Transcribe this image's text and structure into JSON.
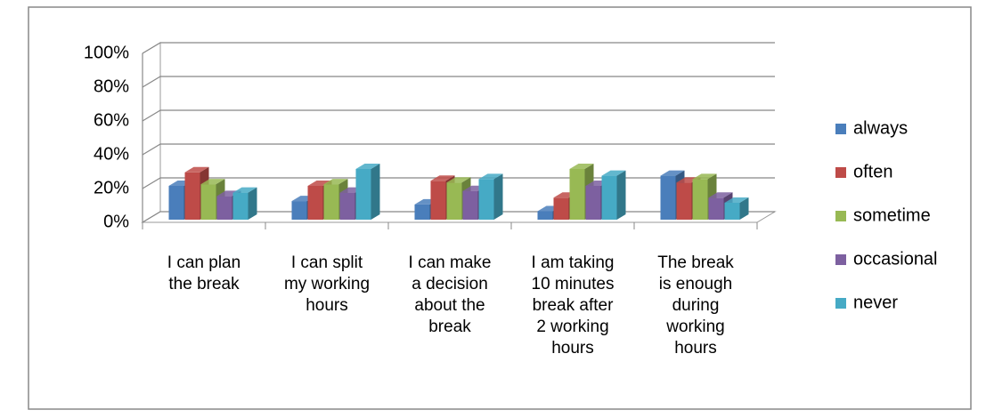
{
  "chart_data": {
    "type": "bar3d",
    "categories": [
      "I can plan\nthe break",
      "I can split\nmy working\nhours",
      "I can make\na decision\nabout the\nbreak",
      "I am taking\n10 minutes\nbreak after\n2 working\nhours",
      "The break\nis enough\nduring\nworking\nhours"
    ],
    "series": [
      {
        "name": "always",
        "color": "#4a7ebb",
        "values": [
          20,
          11,
          9,
          5,
          26
        ]
      },
      {
        "name": "often",
        "color": "#be4b48",
        "values": [
          28,
          20,
          23,
          13,
          22
        ]
      },
      {
        "name": "sometime",
        "color": "#98b954",
        "values": [
          21,
          21,
          22,
          30,
          24
        ]
      },
      {
        "name": "occasional",
        "color": "#7d60a0",
        "values": [
          14,
          16,
          17,
          20,
          13
        ]
      },
      {
        "name": "never",
        "color": "#46aac5",
        "values": [
          16,
          30,
          24,
          26,
          10
        ]
      }
    ],
    "ylim": [
      0,
      100
    ],
    "yticks": [
      {
        "value": 0,
        "label": "0%"
      },
      {
        "value": 20,
        "label": "20%"
      },
      {
        "value": 40,
        "label": "40%"
      },
      {
        "value": 60,
        "label": "60%"
      },
      {
        "value": 80,
        "label": "80%"
      },
      {
        "value": 100,
        "label": "100%"
      }
    ],
    "grid": true,
    "legend": "right"
  }
}
